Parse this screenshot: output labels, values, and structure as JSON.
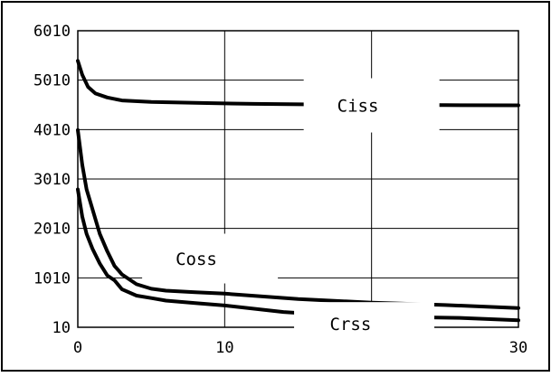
{
  "chart_data": {
    "type": "line",
    "title": "",
    "xlabel": "",
    "ylabel": "",
    "xlim": [
      0,
      30
    ],
    "ylim": [
      10,
      6010
    ],
    "x_ticks": [
      0,
      10,
      30
    ],
    "x_tick_labels": [
      "0",
      "10",
      "30"
    ],
    "y_ticks": [
      10,
      1010,
      2010,
      3010,
      4010,
      5010,
      6010
    ],
    "y_tick_labels": [
      "10",
      "1010",
      "2010",
      "3010",
      "4010",
      "5010",
      "6010"
    ],
    "grid": true,
    "legend": "none",
    "series": [
      {
        "name": "Ciss",
        "x": [
          0,
          0.3,
          0.7,
          1.2,
          2,
          3,
          5,
          8,
          12,
          16,
          20,
          25,
          30
        ],
        "y": [
          5400,
          5120,
          4870,
          4740,
          4660,
          4600,
          4570,
          4550,
          4530,
          4520,
          4510,
          4505,
          4500
        ]
      },
      {
        "name": "Coss",
        "x": [
          0,
          0.3,
          0.6,
          1,
          1.5,
          2,
          2.5,
          2.8,
          3,
          4,
          5,
          6,
          8,
          10,
          15,
          20,
          25,
          30
        ],
        "y": [
          4000,
          3300,
          2800,
          2400,
          1900,
          1550,
          1250,
          1150,
          1080,
          880,
          790,
          750,
          720,
          690,
          580,
          510,
          460,
          400
        ]
      },
      {
        "name": "Crss",
        "x": [
          0,
          0.3,
          0.6,
          1,
          1.5,
          2,
          2.5,
          3,
          4,
          5,
          6,
          8,
          10,
          14,
          17,
          20,
          24,
          26,
          30
        ],
        "y": [
          2800,
          2250,
          1900,
          1600,
          1300,
          1060,
          960,
          780,
          650,
          600,
          550,
          500,
          450,
          320,
          260,
          230,
          210,
          200,
          150
        ]
      }
    ]
  }
}
